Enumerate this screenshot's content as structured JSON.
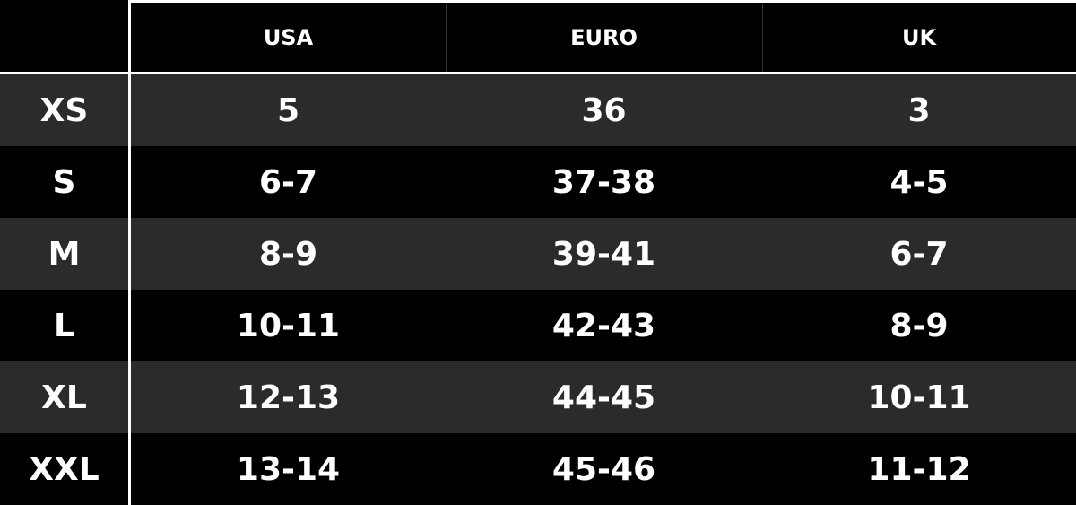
{
  "table": {
    "columns": [
      "USA",
      "EURO",
      "UK"
    ],
    "rows": [
      [
        "XS",
        "5",
        "36",
        "3"
      ],
      [
        "S",
        "6-7",
        "37-38",
        "4-5"
      ],
      [
        "M",
        "8-9",
        "39-41",
        "6-7"
      ],
      [
        "L",
        "10-11",
        "42-43",
        "8-9"
      ],
      [
        "XL",
        "12-13",
        "44-45",
        "10-11"
      ],
      [
        "XXL",
        "13-14",
        "45-46",
        "11-12"
      ]
    ]
  }
}
